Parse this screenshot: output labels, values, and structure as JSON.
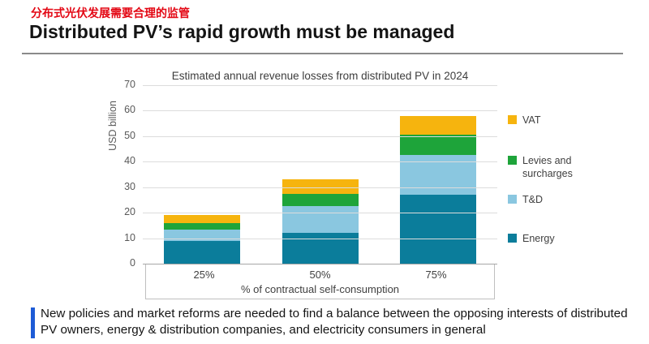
{
  "page": {
    "subtitle_cn": "分布式光伏发展需要合理的监管",
    "title": "Distributed PV’s rapid growth must be managed",
    "note": "New policies and market reforms are needed to find a balance between the opposing interests of distributed PV owners, energy & distribution companies, and electricity consumers in general",
    "accent_red": "#E30613",
    "accent_blue": "#1E5BD6"
  },
  "chart_data": {
    "type": "bar",
    "stacked": true,
    "title": "Estimated annual revenue losses from distributed PV in 2024",
    "ylabel": "USD billion",
    "xlabel": "% of contractual self-consumption",
    "categories": [
      "25%",
      "50%",
      "75%"
    ],
    "series": [
      {
        "name": "Energy",
        "color": "#0B7D9B",
        "values": [
          9,
          12,
          27
        ]
      },
      {
        "name": "T&D",
        "color": "#8AC7E0",
        "values": [
          4.5,
          10.5,
          15.5
        ]
      },
      {
        "name": "Levies and surcharges",
        "color": "#1EA43A",
        "values": [
          2.5,
          5,
          8
        ]
      },
      {
        "name": "VAT",
        "color": "#F6B40E",
        "values": [
          3,
          5.5,
          7.5
        ]
      }
    ],
    "ylim": [
      0,
      70
    ],
    "yticks": [
      0,
      10,
      20,
      30,
      40,
      50,
      60,
      70
    ],
    "grid": true,
    "legend_position": "right"
  }
}
